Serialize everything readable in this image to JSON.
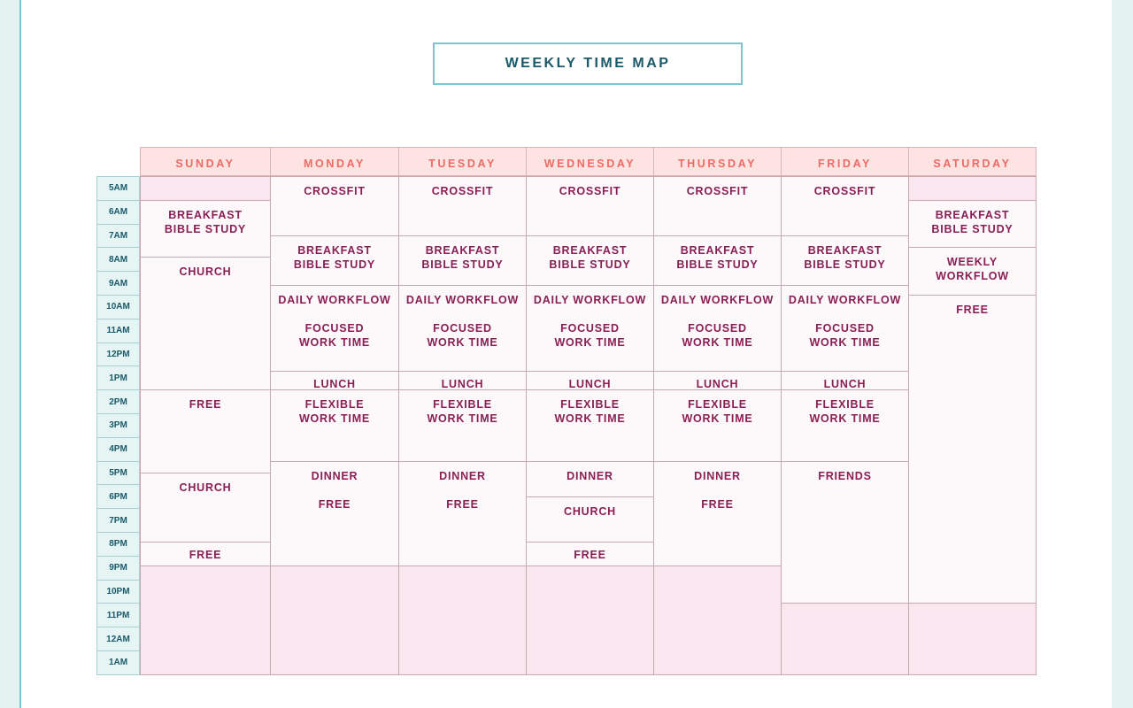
{
  "title": "WEEKLY TIME MAP",
  "times": [
    "5AM",
    "6AM",
    "7AM",
    "8AM",
    "9AM",
    "10AM",
    "11AM",
    "12PM",
    "1PM",
    "2PM",
    "3PM",
    "4PM",
    "5PM",
    "6PM",
    "7PM",
    "8PM",
    "9PM",
    "10PM",
    "11PM",
    "12AM",
    "1AM"
  ],
  "days": [
    "SUNDAY",
    "MONDAY",
    "TUESDAY",
    "WEDNESDAY",
    "THURSDAY",
    "FRIDAY",
    "SATURDAY"
  ],
  "blocks": {
    "sunday": [
      {
        "label": ""
      },
      {
        "label": "BREAKFAST\nBIBLE STUDY"
      },
      {
        "label": "CHURCH"
      },
      {
        "label": "FREE"
      },
      {
        "label": "CHURCH"
      },
      {
        "label": "FREE"
      },
      {
        "label": ""
      }
    ],
    "monday": [
      {
        "label": "CROSSFIT"
      },
      {
        "label": "BREAKFAST\nBIBLE STUDY"
      },
      {
        "label": "DAILY WORKFLOW\n\nFOCUSED\nWORK TIME"
      },
      {
        "label": "LUNCH"
      },
      {
        "label": "FLEXIBLE\nWORK TIME"
      },
      {
        "label": "DINNER\n\nFREE"
      },
      {
        "label": ""
      }
    ],
    "tuesday": [
      {
        "label": "CROSSFIT"
      },
      {
        "label": "BREAKFAST\nBIBLE STUDY"
      },
      {
        "label": "DAILY WORKFLOW\n\nFOCUSED\nWORK TIME"
      },
      {
        "label": "LUNCH"
      },
      {
        "label": "FLEXIBLE\nWORK TIME"
      },
      {
        "label": "DINNER\n\nFREE"
      },
      {
        "label": ""
      }
    ],
    "wednesday": [
      {
        "label": "CROSSFIT"
      },
      {
        "label": "BREAKFAST\nBIBLE STUDY"
      },
      {
        "label": "DAILY WORKFLOW\n\nFOCUSED\nWORK TIME"
      },
      {
        "label": "LUNCH"
      },
      {
        "label": "FLEXIBLE\nWORK TIME"
      },
      {
        "label": "DINNER"
      },
      {
        "label": "CHURCH"
      },
      {
        "label": "FREE"
      },
      {
        "label": ""
      }
    ],
    "thursday": [
      {
        "label": "CROSSFIT"
      },
      {
        "label": "BREAKFAST\nBIBLE STUDY"
      },
      {
        "label": "DAILY WORKFLOW\n\nFOCUSED\nWORK TIME"
      },
      {
        "label": "LUNCH"
      },
      {
        "label": "FLEXIBLE\nWORK TIME"
      },
      {
        "label": "DINNER\n\nFREE"
      },
      {
        "label": ""
      }
    ],
    "friday": [
      {
        "label": "CROSSFIT"
      },
      {
        "label": "BREAKFAST\nBIBLE STUDY"
      },
      {
        "label": "DAILY WORKFLOW\n\nFOCUSED\nWORK TIME"
      },
      {
        "label": "LUNCH"
      },
      {
        "label": "FLEXIBLE\nWORK TIME"
      },
      {
        "label": "FRIENDS"
      },
      {
        "label": ""
      }
    ],
    "saturday": [
      {
        "label": ""
      },
      {
        "label": "BREAKFAST\nBIBLE STUDY"
      },
      {
        "label": "WEEKLY\nWORKFLOW"
      },
      {
        "label": "FREE"
      },
      {
        "label": ""
      }
    ]
  }
}
